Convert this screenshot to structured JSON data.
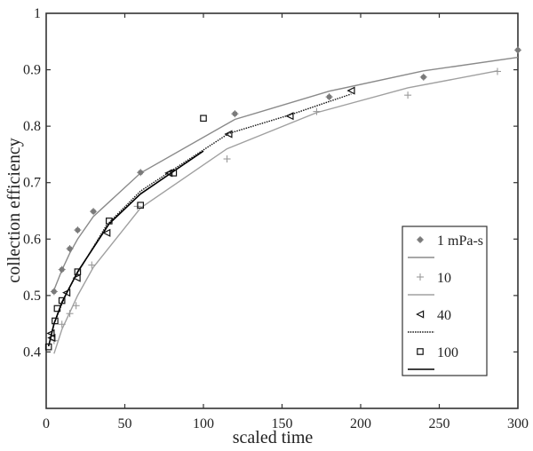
{
  "chart_data": {
    "type": "line",
    "title": "",
    "xlabel": "scaled time",
    "ylabel": "collection efficiency",
    "xlim": [
      0,
      300
    ],
    "ylim": [
      0.3,
      1.0
    ],
    "xticks": [
      0,
      50,
      100,
      150,
      200,
      250,
      300
    ],
    "yticks": [
      0.4,
      0.5,
      0.6,
      0.7,
      0.8,
      0.9,
      1
    ],
    "ytick_labels": [
      "0.4",
      "0.5",
      "0.6",
      "0.7",
      "0.8",
      "0.9",
      "1"
    ],
    "grid": false,
    "legend_position": "lower right",
    "series": [
      {
        "name": "1 mPa-s",
        "marker": "star",
        "color": "#7a7a7a",
        "points": [
          [
            5,
            0.507
          ],
          [
            10,
            0.546
          ],
          [
            15,
            0.583
          ],
          [
            20,
            0.616
          ],
          [
            30,
            0.649
          ],
          [
            60,
            0.718
          ],
          [
            120,
            0.822
          ],
          [
            180,
            0.852
          ],
          [
            240,
            0.887
          ],
          [
            300,
            0.935
          ]
        ],
        "fit_line": {
          "style": "solid",
          "color": "#8a8a8a",
          "points": [
            [
              5,
              0.51
            ],
            [
              10,
              0.545
            ],
            [
              15,
              0.575
            ],
            [
              20,
              0.6
            ],
            [
              30,
              0.64
            ],
            [
              60,
              0.717
            ],
            [
              120,
              0.812
            ],
            [
              180,
              0.862
            ],
            [
              240,
              0.898
            ],
            [
              300,
              0.922
            ]
          ]
        }
      },
      {
        "name": "10",
        "marker": "plus",
        "color": "#9a9a9a",
        "points": [
          [
            5,
            0.42
          ],
          [
            10,
            0.449
          ],
          [
            15,
            0.468
          ],
          [
            19,
            0.482
          ],
          [
            29,
            0.554
          ],
          [
            58,
            0.658
          ],
          [
            115,
            0.742
          ],
          [
            172,
            0.826
          ],
          [
            230,
            0.855
          ],
          [
            287,
            0.897
          ]
        ],
        "fit_line": {
          "style": "solid",
          "color": "#a0a0a0",
          "points": [
            [
              5,
              0.397
            ],
            [
              10,
              0.44
            ],
            [
              15,
              0.47
            ],
            [
              20,
              0.5
            ],
            [
              30,
              0.55
            ],
            [
              60,
              0.655
            ],
            [
              115,
              0.76
            ],
            [
              172,
              0.824
            ],
            [
              230,
              0.868
            ],
            [
              287,
              0.898
            ]
          ]
        }
      },
      {
        "name": "40",
        "marker": "triangle-left",
        "color": "#111111",
        "points": [
          [
            3,
            0.433
          ],
          [
            3.5,
            0.425
          ],
          [
            13,
            0.505
          ],
          [
            19.5,
            0.531
          ],
          [
            38.5,
            0.611
          ],
          [
            78,
            0.717
          ],
          [
            116,
            0.786
          ],
          [
            155,
            0.818
          ],
          [
            194,
            0.863
          ]
        ],
        "fit_line": {
          "style": "dotted",
          "color": "#111111",
          "points": [
            [
              3,
              0.43
            ],
            [
              5,
              0.45
            ],
            [
              10,
              0.485
            ],
            [
              13,
              0.505
            ],
            [
              20,
              0.54
            ],
            [
              38.5,
              0.625
            ],
            [
              60,
              0.685
            ],
            [
              78,
              0.718
            ],
            [
              116,
              0.787
            ],
            [
              155,
              0.82
            ],
            [
              194,
              0.857
            ]
          ]
        }
      },
      {
        "name": "100",
        "marker": "square",
        "color": "#111111",
        "points": [
          [
            1.5,
            0.409
          ],
          [
            5.6,
            0.455
          ],
          [
            7,
            0.477
          ],
          [
            10,
            0.491
          ],
          [
            20,
            0.542
          ],
          [
            40,
            0.632
          ],
          [
            60,
            0.66
          ],
          [
            81,
            0.717
          ],
          [
            100,
            0.814
          ]
        ],
        "fit_line": {
          "style": "solid",
          "color": "#000000",
          "points": [
            [
              1.5,
              0.41
            ],
            [
              5,
              0.45
            ],
            [
              10,
              0.488
            ],
            [
              20,
              0.542
            ],
            [
              40,
              0.627
            ],
            [
              60,
              0.68
            ],
            [
              81,
              0.72
            ],
            [
              100,
              0.756
            ]
          ]
        }
      }
    ]
  }
}
